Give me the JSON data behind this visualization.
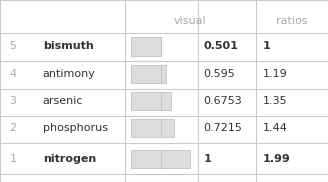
{
  "rows": [
    {
      "rank": 5,
      "element": "bismuth",
      "visual": 0.501,
      "ratio": "1"
    },
    {
      "rank": 4,
      "element": "antimony",
      "visual": 0.595,
      "ratio": "1.19"
    },
    {
      "rank": 3,
      "element": "arsenic",
      "visual": 0.6753,
      "ratio": "1.35"
    },
    {
      "rank": 2,
      "element": "phosphorus",
      "visual": 0.7215,
      "ratio": "1.44"
    },
    {
      "rank": 1,
      "element": "nitrogen",
      "visual": 1.0,
      "ratio": "1.99"
    }
  ],
  "bg_color": "#f5f5f5",
  "table_bg": "#ffffff",
  "header_color": "#aaaaaa",
  "rank_color": "#aaaaaa",
  "element_color": "#333333",
  "value_color": "#333333",
  "bar_fill": "#dddddd",
  "bar_edge": "#bbbbbb",
  "line_color": "#cccccc",
  "bold_ranks": [
    5,
    1
  ],
  "figsize": [
    3.28,
    1.82
  ],
  "dpi": 100
}
